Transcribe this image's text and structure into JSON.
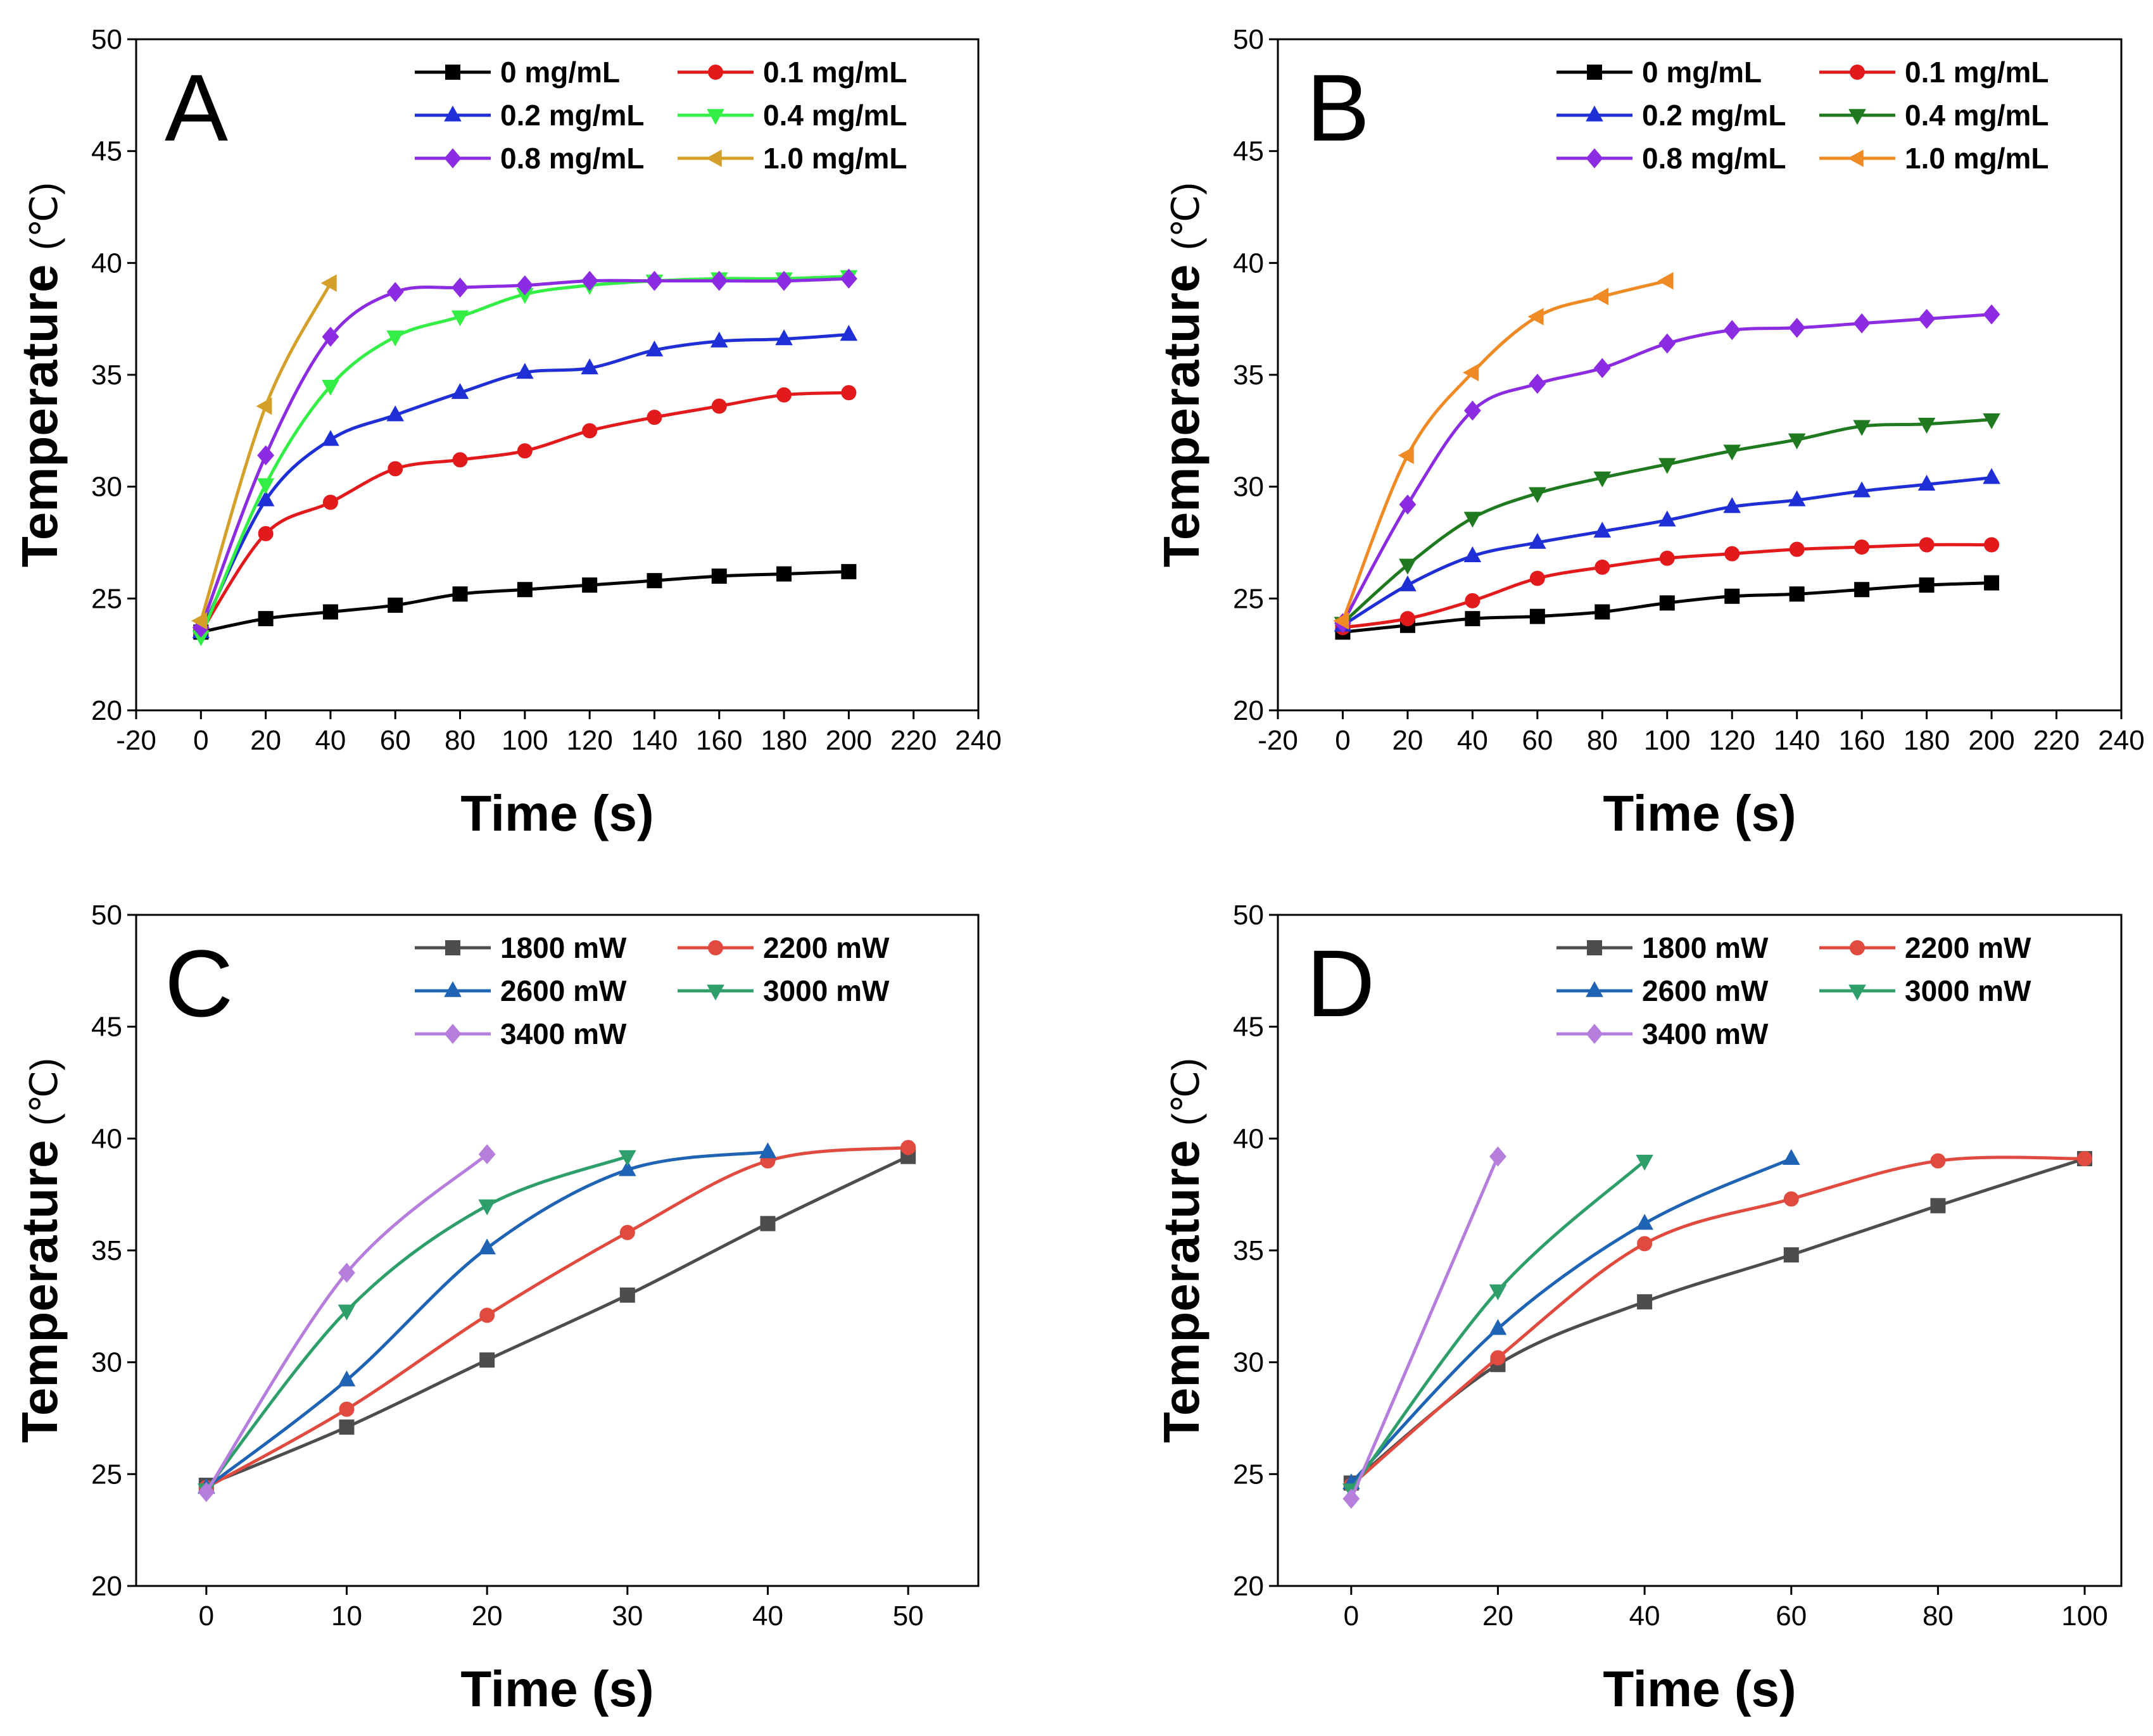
{
  "chart_data": [
    {
      "type": "line",
      "panel": "A",
      "xlabel": "Time (s)",
      "ylabel": "Temperature",
      "ylabel_unit": "℃",
      "xlim": [
        -20,
        240
      ],
      "ylim": [
        20,
        50
      ],
      "xticks": [
        -20,
        0,
        20,
        40,
        60,
        80,
        100,
        120,
        140,
        160,
        180,
        200,
        220,
        240
      ],
      "yticks": [
        20,
        25,
        30,
        35,
        40,
        45,
        50
      ],
      "legend_position": "top-right",
      "legend_columns": 2,
      "series": [
        {
          "name": "0  mg/mL",
          "color": "#000000",
          "marker": "square",
          "x": [
            0,
            20,
            40,
            60,
            80,
            100,
            120,
            140,
            160,
            180,
            200
          ],
          "y": [
            23.5,
            24.1,
            24.4,
            24.7,
            25.2,
            25.4,
            25.6,
            25.8,
            26.0,
            26.1,
            26.2
          ]
        },
        {
          "name": "0.1 mg/mL",
          "color": "#e31a1c",
          "marker": "circle",
          "x": [
            0,
            20,
            40,
            60,
            80,
            100,
            120,
            140,
            160,
            180,
            200
          ],
          "y": [
            23.5,
            27.9,
            29.3,
            30.8,
            31.2,
            31.6,
            32.5,
            33.1,
            33.6,
            34.1,
            34.2
          ]
        },
        {
          "name": "0.2 mg/mL",
          "color": "#1f2fd6",
          "marker": "triangle-up",
          "x": [
            0,
            20,
            40,
            60,
            80,
            100,
            120,
            140,
            160,
            180,
            200
          ],
          "y": [
            23.5,
            29.4,
            32.1,
            33.2,
            34.2,
            35.1,
            35.3,
            36.1,
            36.5,
            36.6,
            36.8
          ]
        },
        {
          "name": "0.4 mg/mL",
          "color": "#33ee44",
          "marker": "triangle-down",
          "x": [
            0,
            20,
            40,
            60,
            80,
            100,
            120,
            140,
            160,
            180,
            200
          ],
          "y": [
            23.3,
            30.1,
            34.5,
            36.7,
            37.6,
            38.6,
            39.0,
            39.2,
            39.3,
            39.3,
            39.4
          ]
        },
        {
          "name": "0.8 mg/mL",
          "color": "#8b2be2",
          "marker": "diamond",
          "x": [
            0,
            20,
            40,
            60,
            80,
            100,
            120,
            140,
            160,
            180,
            200
          ],
          "y": [
            23.7,
            31.4,
            36.7,
            38.7,
            38.9,
            39.0,
            39.2,
            39.2,
            39.2,
            39.2,
            39.3
          ]
        },
        {
          "name": "1.0  mg/mL",
          "color": "#d4a02a",
          "marker": "triangle-left",
          "x": [
            0,
            20,
            40
          ],
          "y": [
            24.0,
            33.6,
            39.1
          ]
        }
      ]
    },
    {
      "type": "line",
      "panel": "B",
      "xlabel": "Time (s)",
      "ylabel": "Temperature",
      "ylabel_unit": "℃",
      "xlim": [
        -20,
        240
      ],
      "ylim": [
        20,
        50
      ],
      "xticks": [
        -20,
        0,
        20,
        40,
        60,
        80,
        100,
        120,
        140,
        160,
        180,
        200,
        220,
        240
      ],
      "yticks": [
        20,
        25,
        30,
        35,
        40,
        45,
        50
      ],
      "legend_position": "top-right",
      "legend_columns": 2,
      "series": [
        {
          "name": "0 mg/mL",
          "color": "#000000",
          "marker": "square",
          "x": [
            0,
            20,
            40,
            60,
            80,
            100,
            120,
            140,
            160,
            180,
            200
          ],
          "y": [
            23.5,
            23.8,
            24.1,
            24.2,
            24.4,
            24.8,
            25.1,
            25.2,
            25.4,
            25.6,
            25.7
          ]
        },
        {
          "name": "0.1 mg/mL",
          "color": "#e31a1c",
          "marker": "circle",
          "x": [
            0,
            20,
            40,
            60,
            80,
            100,
            120,
            140,
            160,
            180,
            200
          ],
          "y": [
            23.7,
            24.1,
            24.9,
            25.9,
            26.4,
            26.8,
            27.0,
            27.2,
            27.3,
            27.4,
            27.4
          ]
        },
        {
          "name": "0.2 mg/mL",
          "color": "#1f2fd6",
          "marker": "triangle-up",
          "x": [
            0,
            20,
            40,
            60,
            80,
            100,
            120,
            140,
            160,
            180,
            200
          ],
          "y": [
            23.8,
            25.6,
            26.9,
            27.5,
            28.0,
            28.5,
            29.1,
            29.4,
            29.8,
            30.1,
            30.4
          ]
        },
        {
          "name": "0.4 mg/mL",
          "color": "#1f7a1f",
          "marker": "triangle-down",
          "x": [
            0,
            20,
            40,
            60,
            80,
            100,
            120,
            140,
            160,
            180,
            200
          ],
          "y": [
            23.9,
            26.5,
            28.6,
            29.7,
            30.4,
            31.0,
            31.6,
            32.1,
            32.7,
            32.8,
            33.0
          ]
        },
        {
          "name": "0.8 mg/mL",
          "color": "#8b2be2",
          "marker": "diamond",
          "x": [
            0,
            20,
            40,
            60,
            80,
            100,
            120,
            140,
            160,
            180,
            200
          ],
          "y": [
            23.9,
            29.2,
            33.4,
            34.6,
            35.3,
            36.4,
            37.0,
            37.1,
            37.3,
            37.5,
            37.7
          ]
        },
        {
          "name": "1.0 mg/mL",
          "color": "#f08a24",
          "marker": "triangle-left",
          "x": [
            0,
            20,
            40,
            60,
            80,
            100
          ],
          "y": [
            24.0,
            31.4,
            35.1,
            37.6,
            38.5,
            39.2
          ]
        }
      ]
    },
    {
      "type": "line",
      "panel": "C",
      "xlabel": "Time (s)",
      "ylabel": "Temperature",
      "ylabel_unit": "℃",
      "xlim": [
        -5,
        55
      ],
      "ylim": [
        20,
        50
      ],
      "xticks": [
        0,
        10,
        20,
        30,
        40,
        50
      ],
      "yticks": [
        20,
        25,
        30,
        35,
        40,
        45,
        50
      ],
      "legend_position": "top-right",
      "legend_columns": 2,
      "series": [
        {
          "name": "1800 mW",
          "color": "#4d4d4d",
          "marker": "square",
          "x": [
            0,
            10,
            20,
            30,
            40,
            50
          ],
          "y": [
            24.5,
            27.1,
            30.1,
            33.0,
            36.2,
            39.2
          ]
        },
        {
          "name": "2200 mW",
          "color": "#e04a3f",
          "marker": "circle",
          "x": [
            0,
            10,
            20,
            30,
            40,
            50
          ],
          "y": [
            24.4,
            27.9,
            32.1,
            35.8,
            39.0,
            39.6
          ]
        },
        {
          "name": "2600 mW",
          "color": "#1f63b5",
          "marker": "triangle-up",
          "x": [
            0,
            10,
            20,
            30,
            40
          ],
          "y": [
            24.4,
            29.2,
            35.1,
            38.6,
            39.4
          ]
        },
        {
          "name": "3000 mW",
          "color": "#2e9e6b",
          "marker": "triangle-down",
          "x": [
            0,
            10,
            20,
            30
          ],
          "y": [
            24.3,
            32.3,
            37.0,
            39.2
          ]
        },
        {
          "name": "3400 mW",
          "color": "#b57edc",
          "marker": "diamond",
          "x": [
            0,
            10,
            20
          ],
          "y": [
            24.2,
            34.0,
            39.3
          ]
        }
      ]
    },
    {
      "type": "line",
      "panel": "D",
      "xlabel": "Time (s)",
      "ylabel": "Temperature",
      "ylabel_unit": "℃",
      "xlim": [
        -10,
        105
      ],
      "ylim": [
        20,
        50
      ],
      "xticks": [
        0,
        20,
        40,
        60,
        80,
        100
      ],
      "yticks": [
        20,
        25,
        30,
        35,
        40,
        45,
        50
      ],
      "legend_position": "top-right",
      "legend_columns": 2,
      "series": [
        {
          "name": "1800 mW",
          "color": "#4d4d4d",
          "marker": "square",
          "x": [
            0,
            20,
            40,
            60,
            80,
            100
          ],
          "y": [
            24.6,
            29.9,
            32.7,
            34.8,
            37.0,
            39.1
          ]
        },
        {
          "name": "2200 mW",
          "color": "#e04a3f",
          "marker": "circle",
          "x": [
            0,
            20,
            40,
            60,
            80,
            100
          ],
          "y": [
            24.5,
            30.2,
            35.3,
            37.3,
            39.0,
            39.1
          ]
        },
        {
          "name": "2600 mW",
          "color": "#1f63b5",
          "marker": "triangle-up",
          "x": [
            0,
            20,
            40,
            60
          ],
          "y": [
            24.6,
            31.5,
            36.2,
            39.1
          ]
        },
        {
          "name": "3000 mW",
          "color": "#2e9e6b",
          "marker": "triangle-down",
          "x": [
            0,
            20,
            40
          ],
          "y": [
            24.3,
            33.2,
            39.0
          ]
        },
        {
          "name": "3400 mW",
          "color": "#b57edc",
          "marker": "diamond",
          "x": [
            0,
            20
          ],
          "y": [
            23.9,
            39.2
          ]
        }
      ]
    }
  ]
}
